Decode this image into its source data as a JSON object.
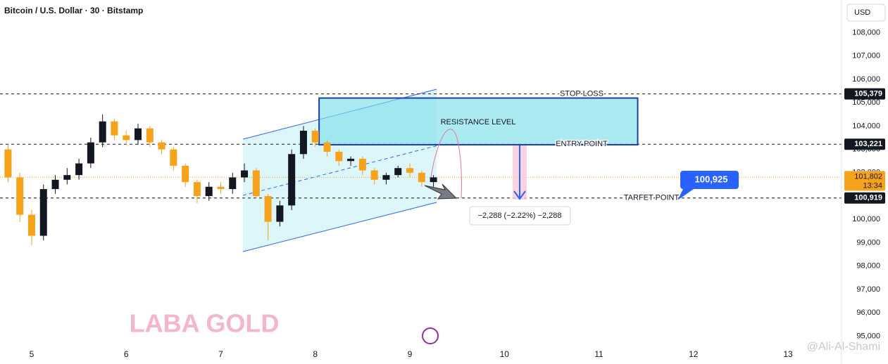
{
  "chart_data": {
    "type": "candlestick",
    "title": "Bitcoin / U.S. Dollar · 30 · Bitstamp",
    "currency": "USD",
    "x": [
      4.75,
      4.875,
      5,
      5.125,
      5.25,
      5.375,
      5.5,
      5.625,
      5.75,
      5.875,
      6,
      6.125,
      6.25,
      6.375,
      6.5,
      6.625,
      6.75,
      6.875,
      7,
      7.125,
      7.25,
      7.375,
      7.5,
      7.625,
      7.75,
      7.875,
      8,
      8.125,
      8.25,
      8.375,
      8.5,
      8.625,
      8.75,
      8.875,
      9,
      9.125,
      9.25
    ],
    "open": [
      103000,
      101800,
      100200,
      99300,
      101300,
      101700,
      101900,
      102400,
      103300,
      104200,
      103600,
      103400,
      103900,
      103300,
      103000,
      102300,
      101600,
      101000,
      101400,
      101300,
      101800,
      102100,
      101000,
      99900,
      100600,
      102800,
      103800,
      103300,
      102900,
      102500,
      102600,
      102100,
      101700,
      101900,
      102200,
      102000,
      101600
    ],
    "high": [
      103200,
      102000,
      100400,
      101500,
      101900,
      102200,
      102600,
      103500,
      104500,
      104300,
      103800,
      104100,
      104000,
      103400,
      103100,
      102400,
      101700,
      101600,
      101600,
      102000,
      102400,
      102200,
      101100,
      100800,
      103000,
      104000,
      103900,
      103400,
      103000,
      102700,
      102700,
      102200,
      102000,
      102300,
      102400,
      102100,
      101900
    ],
    "low": [
      101600,
      99900,
      98900,
      99100,
      101100,
      101500,
      101700,
      102200,
      103100,
      103400,
      103200,
      103200,
      103100,
      102800,
      102100,
      101400,
      100700,
      100800,
      101100,
      101100,
      101600,
      100900,
      99100,
      99700,
      100400,
      102600,
      103100,
      102700,
      102300,
      102300,
      101900,
      101500,
      101500,
      101800,
      101800,
      101400,
      101400
    ],
    "close": [
      101800,
      100200,
      99300,
      101300,
      101700,
      101900,
      102400,
      103300,
      104200,
      103600,
      103400,
      103900,
      103300,
      103000,
      102300,
      101600,
      101000,
      101400,
      101300,
      101800,
      102100,
      101000,
      99900,
      100600,
      102800,
      103800,
      103300,
      102900,
      102500,
      102600,
      102100,
      101700,
      101900,
      102200,
      102000,
      101600,
      101802
    ],
    "up_color": "#131722",
    "down_color": "#f7a21b",
    "xlim": [
      4.665,
      13.566
    ],
    "xticks": [
      5,
      6,
      7,
      8,
      9,
      10,
      11,
      12,
      13
    ],
    "ylim": [
      94500,
      109400
    ],
    "yticks": [
      {
        "value": 95000,
        "label": "95,000"
      },
      {
        "value": 96000,
        "label": "96,000"
      },
      {
        "value": 97000,
        "label": "97,000"
      },
      {
        "value": 98000,
        "label": "98,000"
      },
      {
        "value": 99000,
        "label": "99,000"
      },
      {
        "value": 100000,
        "label": "100,000"
      },
      {
        "value": 101000,
        "label": "101,000"
      },
      {
        "value": 102000,
        "label": "102,000"
      },
      {
        "value": 103000,
        "label": "103,000"
      },
      {
        "value": 104000,
        "label": "104,000"
      },
      {
        "value": 105000,
        "label": "105,000"
      },
      {
        "value": 106000,
        "label": "106,000"
      },
      {
        "value": 107000,
        "label": "107,000"
      },
      {
        "value": 108000,
        "label": "108,000"
      }
    ],
    "levels": [
      {
        "name": "STOP LOSS",
        "value": 105379,
        "label": "105,379"
      },
      {
        "name": "ENTRY POINT",
        "value": 103221,
        "label": "103,221"
      },
      {
        "name": "TARFET POINT",
        "value": 100919,
        "label": "100,919"
      }
    ],
    "last": {
      "value": 101802,
      "label": "101,802",
      "countdown": "13:34"
    },
    "zone": {
      "label": "RESISTANCE LEVEL",
      "x": [
        8.04,
        11.41
      ],
      "y": [
        103200,
        105200
      ]
    },
    "channel": {
      "x": [
        7.235,
        9.283
      ],
      "upper": [
        103440,
        105577
      ],
      "lower": [
        98624,
        100731
      ]
    },
    "measure": "−2,288 (−2.22%) −2,288",
    "callout": "100,925",
    "watermark": "LABA GOLD",
    "author": "@Ali-Al-Shami"
  }
}
